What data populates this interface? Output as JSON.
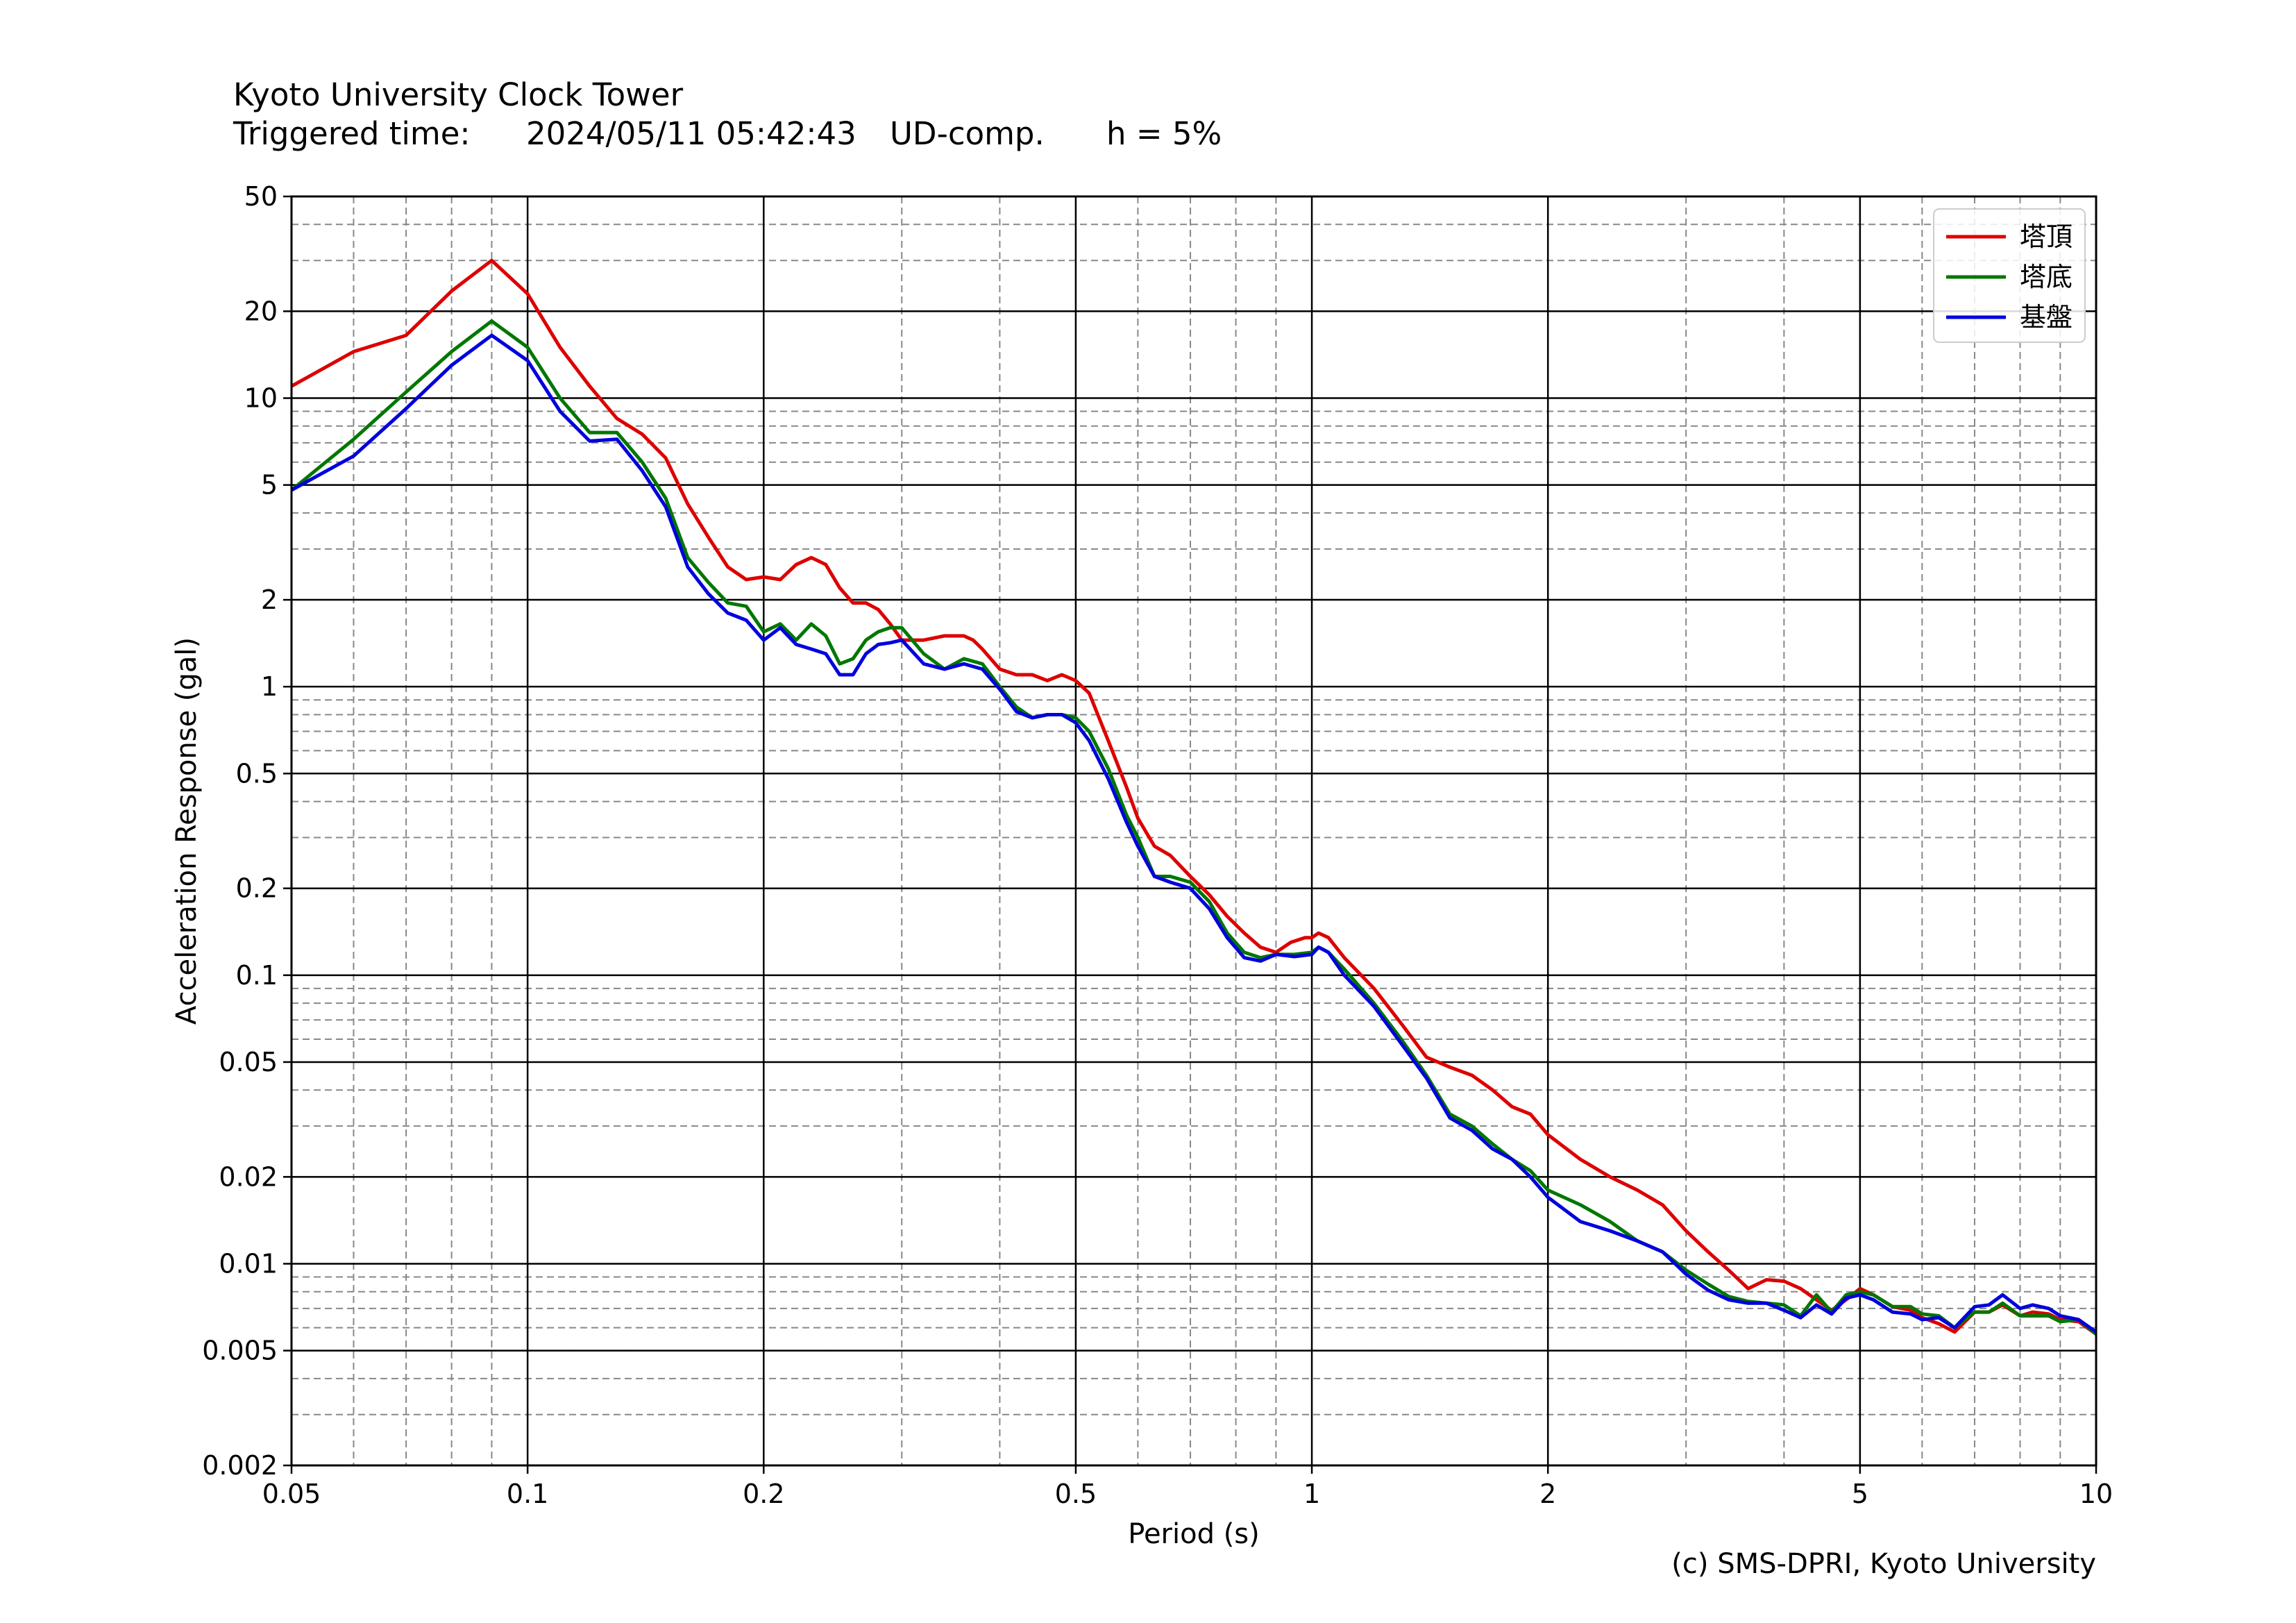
{
  "header": {
    "title": "Kyoto University Clock Tower",
    "triggered_label": "Triggered time:",
    "triggered_value": "2024/05/11 05:42:43",
    "component": "UD-comp.",
    "damping": "h = 5%"
  },
  "credit": "(c) SMS-DPRI, Kyoto University",
  "colors": {
    "red": "#dd0000",
    "green": "#007700",
    "blue": "#0000dd",
    "major_grid": "#000000",
    "minor_grid": "#888888"
  },
  "chart_data": {
    "type": "line",
    "xscale": "log",
    "yscale": "log",
    "xlabel": "Period (s)",
    "ylabel": "Acceleration Response (gal)",
    "xlim": [
      0.05,
      10
    ],
    "ylim": [
      0.002,
      50
    ],
    "xticks": [
      0.05,
      0.1,
      0.2,
      0.5,
      1,
      2,
      5,
      10
    ],
    "xtick_labels": [
      "0.05",
      "0.1",
      "0.2",
      "0.5",
      "1",
      "2",
      "5",
      "10"
    ],
    "yticks": [
      0.002,
      0.005,
      0.01,
      0.02,
      0.05,
      0.1,
      0.2,
      0.5,
      1,
      2,
      5,
      10,
      20,
      50
    ],
    "ytick_labels": [
      "0.002",
      "0.005",
      "0.01",
      "0.02",
      "0.05",
      "0.1",
      "0.2",
      "0.5",
      "1",
      "2",
      "5",
      "10",
      "20",
      "50"
    ],
    "grid": true,
    "legend_position": "top-right",
    "series": [
      {
        "name": "塔頂",
        "color": "#dd0000",
        "points": [
          [
            0.05,
            11
          ],
          [
            0.06,
            14.5
          ],
          [
            0.07,
            16.5
          ],
          [
            0.08,
            23.5
          ],
          [
            0.09,
            30
          ],
          [
            0.1,
            23
          ],
          [
            0.11,
            15
          ],
          [
            0.12,
            11
          ],
          [
            0.13,
            8.5
          ],
          [
            0.14,
            7.5
          ],
          [
            0.15,
            6.2
          ],
          [
            0.16,
            4.3
          ],
          [
            0.17,
            3.3
          ],
          [
            0.18,
            2.6
          ],
          [
            0.19,
            2.35
          ],
          [
            0.2,
            2.4
          ],
          [
            0.21,
            2.35
          ],
          [
            0.22,
            2.65
          ],
          [
            0.23,
            2.8
          ],
          [
            0.24,
            2.65
          ],
          [
            0.25,
            2.2
          ],
          [
            0.26,
            1.95
          ],
          [
            0.27,
            1.95
          ],
          [
            0.28,
            1.85
          ],
          [
            0.29,
            1.65
          ],
          [
            0.3,
            1.45
          ],
          [
            0.32,
            1.45
          ],
          [
            0.34,
            1.5
          ],
          [
            0.36,
            1.5
          ],
          [
            0.37,
            1.45
          ],
          [
            0.38,
            1.35
          ],
          [
            0.4,
            1.15
          ],
          [
            0.42,
            1.1
          ],
          [
            0.44,
            1.1
          ],
          [
            0.46,
            1.05
          ],
          [
            0.48,
            1.1
          ],
          [
            0.5,
            1.05
          ],
          [
            0.52,
            0.95
          ],
          [
            0.55,
            0.65
          ],
          [
            0.58,
            0.45
          ],
          [
            0.6,
            0.35
          ],
          [
            0.63,
            0.28
          ],
          [
            0.66,
            0.26
          ],
          [
            0.7,
            0.22
          ],
          [
            0.74,
            0.19
          ],
          [
            0.78,
            0.16
          ],
          [
            0.82,
            0.14
          ],
          [
            0.86,
            0.125
          ],
          [
            0.9,
            0.12
          ],
          [
            0.94,
            0.13
          ],
          [
            0.98,
            0.135
          ],
          [
            1.0,
            0.135
          ],
          [
            1.02,
            0.14
          ],
          [
            1.05,
            0.135
          ],
          [
            1.1,
            0.115
          ],
          [
            1.2,
            0.09
          ],
          [
            1.3,
            0.068
          ],
          [
            1.4,
            0.052
          ],
          [
            1.5,
            0.048
          ],
          [
            1.6,
            0.045
          ],
          [
            1.7,
            0.04
          ],
          [
            1.8,
            0.035
          ],
          [
            1.9,
            0.033
          ],
          [
            2.0,
            0.028
          ],
          [
            2.2,
            0.023
          ],
          [
            2.4,
            0.02
          ],
          [
            2.6,
            0.018
          ],
          [
            2.8,
            0.016
          ],
          [
            3.0,
            0.013
          ],
          [
            3.2,
            0.011
          ],
          [
            3.4,
            0.0095
          ],
          [
            3.6,
            0.0082
          ],
          [
            3.8,
            0.0088
          ],
          [
            4.0,
            0.0087
          ],
          [
            4.2,
            0.0082
          ],
          [
            4.4,
            0.0075
          ],
          [
            4.6,
            0.0069
          ],
          [
            4.8,
            0.0075
          ],
          [
            5.0,
            0.0082
          ],
          [
            5.2,
            0.0078
          ],
          [
            5.5,
            0.0071
          ],
          [
            5.8,
            0.0069
          ],
          [
            6.0,
            0.0065
          ],
          [
            6.3,
            0.0062
          ],
          [
            6.6,
            0.0058
          ],
          [
            7.0,
            0.0068
          ],
          [
            7.3,
            0.0068
          ],
          [
            7.6,
            0.0072
          ],
          [
            8.0,
            0.0066
          ],
          [
            8.3,
            0.0068
          ],
          [
            8.7,
            0.0067
          ],
          [
            9.0,
            0.0064
          ],
          [
            9.5,
            0.0063
          ],
          [
            10.0,
            0.0057
          ]
        ]
      },
      {
        "name": "塔底",
        "color": "#007700",
        "points": [
          [
            0.05,
            4.8
          ],
          [
            0.06,
            7.2
          ],
          [
            0.07,
            10.5
          ],
          [
            0.08,
            14.5
          ],
          [
            0.09,
            18.5
          ],
          [
            0.1,
            15
          ],
          [
            0.11,
            10
          ],
          [
            0.12,
            7.6
          ],
          [
            0.13,
            7.6
          ],
          [
            0.14,
            6
          ],
          [
            0.15,
            4.5
          ],
          [
            0.16,
            2.8
          ],
          [
            0.17,
            2.3
          ],
          [
            0.18,
            1.95
          ],
          [
            0.19,
            1.9
          ],
          [
            0.2,
            1.55
          ],
          [
            0.21,
            1.65
          ],
          [
            0.22,
            1.45
          ],
          [
            0.23,
            1.65
          ],
          [
            0.24,
            1.5
          ],
          [
            0.25,
            1.2
          ],
          [
            0.26,
            1.25
          ],
          [
            0.27,
            1.45
          ],
          [
            0.28,
            1.55
          ],
          [
            0.29,
            1.6
          ],
          [
            0.3,
            1.6
          ],
          [
            0.32,
            1.3
          ],
          [
            0.34,
            1.15
          ],
          [
            0.36,
            1.25
          ],
          [
            0.38,
            1.2
          ],
          [
            0.4,
            1.0
          ],
          [
            0.42,
            0.85
          ],
          [
            0.44,
            0.78
          ],
          [
            0.46,
            0.8
          ],
          [
            0.48,
            0.8
          ],
          [
            0.5,
            0.78
          ],
          [
            0.52,
            0.7
          ],
          [
            0.55,
            0.52
          ],
          [
            0.58,
            0.36
          ],
          [
            0.6,
            0.3
          ],
          [
            0.63,
            0.22
          ],
          [
            0.66,
            0.22
          ],
          [
            0.7,
            0.21
          ],
          [
            0.74,
            0.18
          ],
          [
            0.78,
            0.14
          ],
          [
            0.82,
            0.12
          ],
          [
            0.86,
            0.115
          ],
          [
            0.9,
            0.118
          ],
          [
            0.95,
            0.118
          ],
          [
            1.0,
            0.12
          ],
          [
            1.02,
            0.125
          ],
          [
            1.05,
            0.12
          ],
          [
            1.1,
            0.105
          ],
          [
            1.2,
            0.08
          ],
          [
            1.3,
            0.06
          ],
          [
            1.4,
            0.045
          ],
          [
            1.5,
            0.033
          ],
          [
            1.6,
            0.03
          ],
          [
            1.7,
            0.026
          ],
          [
            1.8,
            0.023
          ],
          [
            1.9,
            0.021
          ],
          [
            2.0,
            0.018
          ],
          [
            2.2,
            0.016
          ],
          [
            2.4,
            0.014
          ],
          [
            2.6,
            0.012
          ],
          [
            2.8,
            0.011
          ],
          [
            3.0,
            0.0095
          ],
          [
            3.2,
            0.0085
          ],
          [
            3.4,
            0.0077
          ],
          [
            3.6,
            0.0074
          ],
          [
            3.8,
            0.0073
          ],
          [
            4.0,
            0.0072
          ],
          [
            4.2,
            0.0066
          ],
          [
            4.4,
            0.0078
          ],
          [
            4.6,
            0.0068
          ],
          [
            4.8,
            0.0078
          ],
          [
            5.0,
            0.008
          ],
          [
            5.2,
            0.0078
          ],
          [
            5.5,
            0.0071
          ],
          [
            5.8,
            0.0071
          ],
          [
            6.0,
            0.0067
          ],
          [
            6.3,
            0.0066
          ],
          [
            6.6,
            0.006
          ],
          [
            7.0,
            0.0068
          ],
          [
            7.3,
            0.0068
          ],
          [
            7.6,
            0.0073
          ],
          [
            8.0,
            0.0066
          ],
          [
            8.3,
            0.0066
          ],
          [
            8.7,
            0.0066
          ],
          [
            9.0,
            0.0063
          ],
          [
            9.5,
            0.0064
          ],
          [
            10.0,
            0.0057
          ]
        ]
      },
      {
        "name": "基盤",
        "color": "#0000dd",
        "points": [
          [
            0.05,
            4.8
          ],
          [
            0.06,
            6.3
          ],
          [
            0.07,
            9.2
          ],
          [
            0.08,
            13
          ],
          [
            0.09,
            16.5
          ],
          [
            0.1,
            13.5
          ],
          [
            0.11,
            9
          ],
          [
            0.12,
            7.1
          ],
          [
            0.13,
            7.2
          ],
          [
            0.14,
            5.6
          ],
          [
            0.15,
            4.2
          ],
          [
            0.16,
            2.6
          ],
          [
            0.17,
            2.1
          ],
          [
            0.18,
            1.8
          ],
          [
            0.19,
            1.7
          ],
          [
            0.2,
            1.45
          ],
          [
            0.21,
            1.6
          ],
          [
            0.22,
            1.4
          ],
          [
            0.23,
            1.35
          ],
          [
            0.24,
            1.3
          ],
          [
            0.25,
            1.1
          ],
          [
            0.26,
            1.1
          ],
          [
            0.27,
            1.3
          ],
          [
            0.28,
            1.4
          ],
          [
            0.29,
            1.42
          ],
          [
            0.3,
            1.45
          ],
          [
            0.32,
            1.2
          ],
          [
            0.34,
            1.15
          ],
          [
            0.36,
            1.2
          ],
          [
            0.38,
            1.15
          ],
          [
            0.4,
            0.98
          ],
          [
            0.42,
            0.82
          ],
          [
            0.44,
            0.78
          ],
          [
            0.46,
            0.8
          ],
          [
            0.48,
            0.8
          ],
          [
            0.5,
            0.75
          ],
          [
            0.52,
            0.65
          ],
          [
            0.55,
            0.48
          ],
          [
            0.58,
            0.34
          ],
          [
            0.6,
            0.28
          ],
          [
            0.63,
            0.22
          ],
          [
            0.66,
            0.21
          ],
          [
            0.7,
            0.2
          ],
          [
            0.74,
            0.17
          ],
          [
            0.78,
            0.135
          ],
          [
            0.82,
            0.115
          ],
          [
            0.86,
            0.112
          ],
          [
            0.9,
            0.118
          ],
          [
            0.95,
            0.116
          ],
          [
            1.0,
            0.118
          ],
          [
            1.02,
            0.125
          ],
          [
            1.05,
            0.12
          ],
          [
            1.1,
            0.1
          ],
          [
            1.2,
            0.078
          ],
          [
            1.3,
            0.058
          ],
          [
            1.4,
            0.044
          ],
          [
            1.5,
            0.032
          ],
          [
            1.6,
            0.029
          ],
          [
            1.7,
            0.025
          ],
          [
            1.8,
            0.023
          ],
          [
            1.9,
            0.02
          ],
          [
            2.0,
            0.017
          ],
          [
            2.2,
            0.014
          ],
          [
            2.4,
            0.013
          ],
          [
            2.6,
            0.012
          ],
          [
            2.8,
            0.011
          ],
          [
            3.0,
            0.0092
          ],
          [
            3.2,
            0.0081
          ],
          [
            3.4,
            0.0075
          ],
          [
            3.6,
            0.0073
          ],
          [
            3.8,
            0.0073
          ],
          [
            4.0,
            0.0069
          ],
          [
            4.2,
            0.0065
          ],
          [
            4.4,
            0.0072
          ],
          [
            4.6,
            0.0067
          ],
          [
            4.8,
            0.0076
          ],
          [
            5.0,
            0.0078
          ],
          [
            5.2,
            0.0075
          ],
          [
            5.5,
            0.0068
          ],
          [
            5.8,
            0.0067
          ],
          [
            6.0,
            0.0064
          ],
          [
            6.3,
            0.0065
          ],
          [
            6.6,
            0.006
          ],
          [
            7.0,
            0.0071
          ],
          [
            7.3,
            0.0072
          ],
          [
            7.6,
            0.0078
          ],
          [
            8.0,
            0.007
          ],
          [
            8.3,
            0.0072
          ],
          [
            8.7,
            0.007
          ],
          [
            9.0,
            0.0066
          ],
          [
            9.5,
            0.0064
          ],
          [
            10.0,
            0.0058
          ]
        ]
      }
    ]
  }
}
